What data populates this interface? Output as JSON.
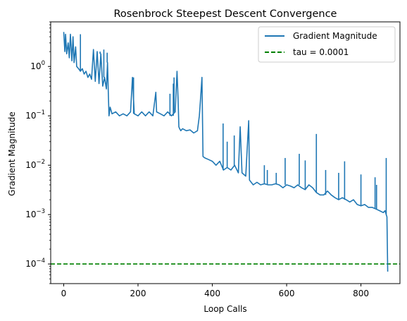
{
  "chart_data": {
    "type": "line",
    "title": "Rosenbrock Steepest Descent Convergence",
    "xlabel": "Loop Calls",
    "ylabel": "Gradient Magnitude",
    "xlim": [
      -35,
      905
    ],
    "ylim": [
      4e-05,
      8
    ],
    "yscale": "log",
    "x_ticks": [
      {
        "value": 0,
        "label": "0"
      },
      {
        "value": 200,
        "label": "200"
      },
      {
        "value": 400,
        "label": "400"
      },
      {
        "value": 600,
        "label": "600"
      },
      {
        "value": 800,
        "label": "800"
      }
    ],
    "y_ticks": [
      {
        "value": 0.0001,
        "base": "10",
        "exp": "−4"
      },
      {
        "value": 0.001,
        "base": "10",
        "exp": "−3"
      },
      {
        "value": 0.01,
        "base": "10",
        "exp": "−2"
      },
      {
        "value": 0.1,
        "base": "10",
        "exp": "−1"
      },
      {
        "value": 1,
        "base": "10",
        "exp": "0"
      }
    ],
    "grid": false,
    "legend_position": "top-right",
    "legend": [
      {
        "label": "Gradient Magnitude",
        "color": "#1f77b4",
        "style": "solid"
      },
      {
        "label": "tau = 0.0001",
        "color": "#008000",
        "style": "dashed"
      }
    ],
    "series": [
      {
        "name": "Gradient Magnitude",
        "color": "#1f77b4",
        "x": [
          0,
          3,
          5,
          8,
          12,
          15,
          18,
          22,
          25,
          28,
          32,
          35,
          40,
          45,
          50,
          55,
          60,
          65,
          70,
          75,
          80,
          85,
          90,
          95,
          100,
          105,
          110,
          115,
          118,
          120,
          122,
          125,
          130,
          140,
          150,
          160,
          170,
          180,
          185,
          190,
          200,
          210,
          220,
          230,
          240,
          248,
          250,
          260,
          270,
          280,
          290,
          300,
          305,
          308,
          310,
          312,
          315,
          320,
          330,
          340,
          350,
          360,
          365,
          368,
          372,
          375,
          380,
          390,
          400,
          410,
          420,
          430,
          440,
          450,
          460,
          470,
          475,
          480,
          490,
          498,
          500,
          510,
          520,
          530,
          540,
          550,
          560,
          570,
          580,
          590,
          600,
          610,
          620,
          630,
          640,
          650,
          660,
          670,
          680,
          690,
          700,
          710,
          720,
          730,
          740,
          750,
          760,
          770,
          780,
          790,
          800,
          810,
          820,
          830,
          840,
          850,
          860,
          865,
          868,
          870,
          872
        ],
        "y": [
          5.0,
          2.0,
          4.5,
          1.8,
          3.0,
          1.5,
          4.5,
          1.3,
          4.0,
          1.2,
          2.5,
          1.0,
          0.9,
          0.8,
          0.9,
          0.7,
          0.8,
          0.6,
          0.7,
          0.55,
          2.2,
          0.5,
          2.0,
          0.45,
          1.8,
          0.4,
          0.6,
          0.35,
          1.2,
          0.3,
          0.1,
          0.15,
          0.11,
          0.12,
          0.1,
          0.11,
          0.1,
          0.12,
          0.6,
          0.11,
          0.1,
          0.12,
          0.1,
          0.12,
          0.1,
          0.3,
          0.12,
          0.11,
          0.1,
          0.12,
          0.1,
          0.12,
          0.8,
          0.2,
          0.06,
          0.055,
          0.05,
          0.055,
          0.05,
          0.052,
          0.045,
          0.05,
          0.1,
          0.2,
          0.6,
          0.015,
          0.014,
          0.013,
          0.012,
          0.01,
          0.012,
          0.008,
          0.009,
          0.008,
          0.01,
          0.007,
          0.06,
          0.007,
          0.006,
          0.08,
          0.005,
          0.004,
          0.0045,
          0.004,
          0.0042,
          0.004,
          0.004,
          0.0042,
          0.004,
          0.0035,
          0.004,
          0.0038,
          0.0035,
          0.004,
          0.0035,
          0.0032,
          0.004,
          0.0035,
          0.0028,
          0.0025,
          0.0025,
          0.003,
          0.0025,
          0.0022,
          0.002,
          0.0022,
          0.002,
          0.0018,
          0.002,
          0.0016,
          0.0015,
          0.0016,
          0.0014,
          0.0014,
          0.0013,
          0.0012,
          0.0011,
          0.0012,
          0.001,
          0.0009,
          7e-05
        ]
      }
    ],
    "spikes": [
      {
        "x": 45,
        "y": 4.5
      },
      {
        "x": 82,
        "y": 2.2
      },
      {
        "x": 98,
        "y": 2.0
      },
      {
        "x": 108,
        "y": 2.2
      },
      {
        "x": 117,
        "y": 1.9
      },
      {
        "x": 188,
        "y": 0.6
      },
      {
        "x": 248,
        "y": 0.3
      },
      {
        "x": 286,
        "y": 0.28
      },
      {
        "x": 295,
        "y": 0.45
      },
      {
        "x": 297,
        "y": 0.6
      },
      {
        "x": 306,
        "y": 0.8
      },
      {
        "x": 372,
        "y": 0.6
      },
      {
        "x": 429,
        "y": 0.07
      },
      {
        "x": 440,
        "y": 0.03
      },
      {
        "x": 459,
        "y": 0.04
      },
      {
        "x": 475,
        "y": 0.06
      },
      {
        "x": 498,
        "y": 0.08
      },
      {
        "x": 540,
        "y": 0.01
      },
      {
        "x": 548,
        "y": 0.008
      },
      {
        "x": 572,
        "y": 0.007
      },
      {
        "x": 596,
        "y": 0.014
      },
      {
        "x": 634,
        "y": 0.017
      },
      {
        "x": 650,
        "y": 0.0125
      },
      {
        "x": 680,
        "y": 0.043
      },
      {
        "x": 705,
        "y": 0.008
      },
      {
        "x": 740,
        "y": 0.007
      },
      {
        "x": 756,
        "y": 0.012
      },
      {
        "x": 800,
        "y": 0.0065
      },
      {
        "x": 838,
        "y": 0.0057
      },
      {
        "x": 842,
        "y": 0.004
      },
      {
        "x": 868,
        "y": 0.014
      }
    ],
    "threshold": {
      "name": "tau = 0.0001",
      "y": 0.0001,
      "color": "#008000",
      "style": "dashed"
    }
  }
}
